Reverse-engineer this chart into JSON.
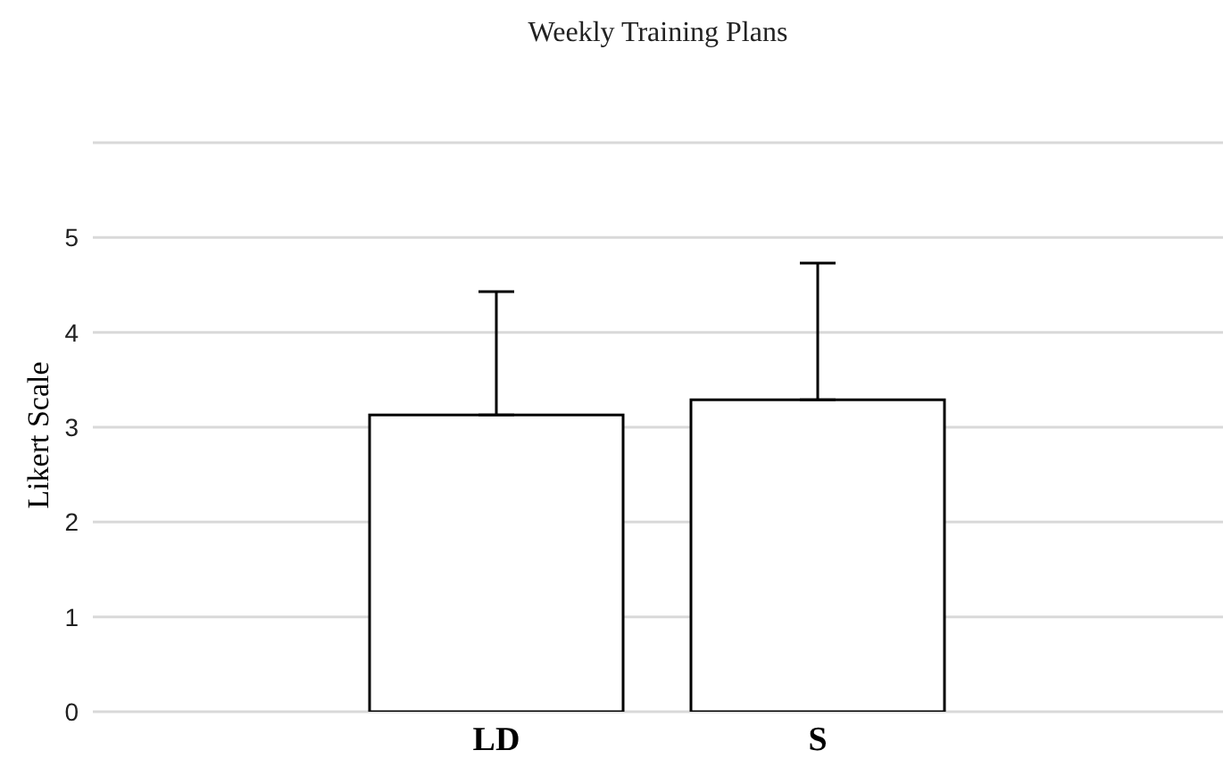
{
  "chart_data": {
    "type": "bar",
    "title": "Weekly Training Plans",
    "ylabel": "Likert Scale",
    "categories": [
      "LD",
      "S"
    ],
    "values": [
      3.13,
      3.29
    ],
    "errors": [
      [
        3.13,
        4.43
      ],
      [
        3.29,
        4.73
      ]
    ],
    "color": "#ffffff",
    "ylim": [
      0,
      6
    ],
    "yticks": [
      0,
      1,
      2,
      3,
      4,
      5,
      {
        "value": 6,
        "label": null
      }
    ],
    "grid": "y",
    "legend": false
  }
}
